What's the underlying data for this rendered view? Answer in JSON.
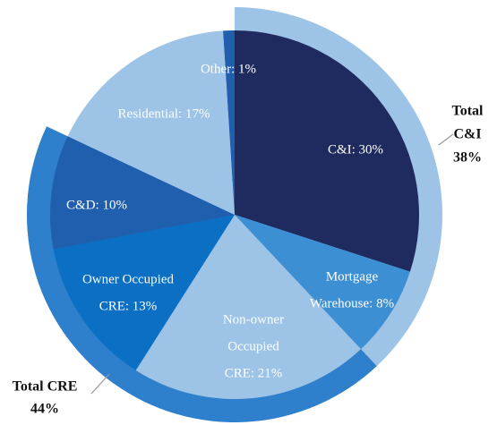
{
  "chart_data": {
    "type": "pie",
    "values": [
      30,
      8,
      21,
      13,
      10,
      17,
      1
    ],
    "value_labels": [
      [
        "C&I: 30%"
      ],
      [
        "Mortgage",
        "Warehouse: 8%"
      ],
      [
        "Non-owner",
        "Occupied",
        "CRE: 21%"
      ],
      [
        "Owner Occupied",
        "CRE: 13%"
      ],
      [
        "C&D: 10%"
      ],
      [
        "Residential: 17%"
      ],
      [
        "Other: 1%"
      ]
    ],
    "colors": [
      "#1f2a5e",
      "#3d8fd4",
      "#9dc3e6",
      "#0b6fc4",
      "#1f5fae",
      "#9dc3e6",
      "#1f5fae"
    ],
    "groups": [
      {
        "label": [
          "Total",
          "C&I",
          "38%"
        ],
        "value": 38,
        "color": "#9dc3e6"
      },
      {
        "label": [
          "Total CRE",
          "44%"
        ],
        "value": 44,
        "color": "#2e7fcc"
      }
    ]
  }
}
